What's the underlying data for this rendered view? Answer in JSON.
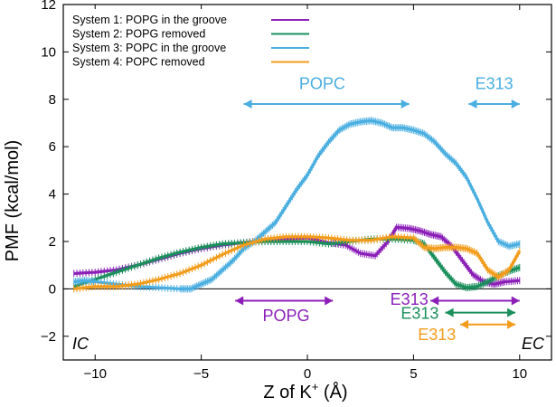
{
  "chart_data": {
    "type": "line",
    "xlabel_main": "Z of K",
    "xlabel_sup": "+",
    "xlabel_unit": " (Å)",
    "ylabel": "PMF (kcal/mol)",
    "xlim": [
      -11.5,
      11.5
    ],
    "ylim": [
      -3,
      12
    ],
    "xticks": [
      -10,
      -5,
      0,
      5,
      10
    ],
    "xtick_labels": [
      "−10",
      "−5",
      "0",
      "5",
      "10"
    ],
    "yticks": [
      -2,
      0,
      2,
      4,
      6,
      8,
      10,
      12
    ],
    "ytick_labels": [
      "−2",
      "0",
      "2",
      "4",
      "6",
      "8",
      "10",
      "12"
    ],
    "legend_position": "top-left",
    "series": [
      {
        "name": "System 1: POPG in the groove",
        "color": "#8b1fb8",
        "x": [
          -11,
          -10,
          -9,
          -8,
          -7,
          -6,
          -5,
          -4,
          -3,
          -2,
          -1,
          0,
          1,
          1.8,
          2.5,
          3.2,
          3.8,
          4.2,
          4.8,
          5.3,
          5.8,
          6.3,
          6.8,
          7.3,
          7.8,
          8.3,
          8.8,
          9.3,
          10
        ],
        "y": [
          0.65,
          0.7,
          0.8,
          1.0,
          1.25,
          1.5,
          1.7,
          1.85,
          1.95,
          2.05,
          2.1,
          2.15,
          1.95,
          1.85,
          1.5,
          1.4,
          2.0,
          2.6,
          2.55,
          2.45,
          2.3,
          2.2,
          1.8,
          1.2,
          0.6,
          0.3,
          0.2,
          0.3,
          0.35
        ]
      },
      {
        "name": "System 2: POPG removed",
        "color": "#1a8f5c",
        "x": [
          -11,
          -10,
          -9,
          -8,
          -7,
          -6,
          -5,
          -4,
          -3,
          -2,
          -1,
          0,
          1,
          2,
          3,
          4,
          5,
          5.5,
          6,
          6.5,
          7,
          7.5,
          8,
          8.5,
          9,
          9.5,
          10
        ],
        "y": [
          0.1,
          0.4,
          0.7,
          1.0,
          1.3,
          1.55,
          1.75,
          1.9,
          1.95,
          2.0,
          2.0,
          2.0,
          1.9,
          2.0,
          2.1,
          2.1,
          2.05,
          1.9,
          1.3,
          0.7,
          0.2,
          0.05,
          0.1,
          0.3,
          0.55,
          0.75,
          0.9
        ]
      },
      {
        "name": "System 3: POPC in the groove",
        "color": "#4aaee0",
        "x": [
          -11,
          -10.5,
          -10,
          -9,
          -8,
          -7,
          -6,
          -5.5,
          -5,
          -4.5,
          -4,
          -3.5,
          -3,
          -2.5,
          -2,
          -1.5,
          -1,
          -0.5,
          0,
          0.5,
          1,
          1.5,
          2,
          2.5,
          3,
          3.5,
          4,
          4.5,
          5,
          5.5,
          6,
          6.5,
          7,
          7.5,
          8,
          8.5,
          9,
          9.5,
          10
        ],
        "y": [
          0.3,
          0.35,
          0.3,
          0.2,
          0.1,
          0.05,
          0.0,
          0.0,
          0.2,
          0.4,
          0.8,
          1.2,
          1.7,
          2.0,
          2.4,
          2.8,
          3.5,
          4.2,
          4.8,
          5.6,
          6.2,
          6.7,
          6.95,
          7.05,
          7.1,
          7.0,
          6.8,
          6.8,
          6.7,
          6.55,
          6.2,
          5.7,
          5.3,
          4.7,
          3.8,
          2.8,
          2.0,
          1.8,
          1.9
        ]
      },
      {
        "name": "System 4: POPC removed",
        "color": "#f39c1c",
        "x": [
          -11,
          -10,
          -9,
          -8,
          -7,
          -6,
          -5,
          -4,
          -3,
          -2,
          -1,
          0,
          1,
          2,
          3,
          4,
          5,
          5.5,
          6,
          6.5,
          7,
          7.5,
          8,
          8.5,
          9,
          9.5,
          10
        ],
        "y": [
          0.0,
          0.1,
          0.1,
          0.2,
          0.4,
          0.65,
          1.0,
          1.45,
          1.85,
          2.1,
          2.2,
          2.2,
          2.15,
          2.05,
          2.05,
          2.2,
          2.15,
          1.75,
          1.7,
          1.75,
          1.75,
          1.7,
          1.5,
          0.8,
          0.5,
          0.8,
          1.6
        ]
      }
    ],
    "annotations": [
      {
        "text": "POPC",
        "color": "#4aaee0",
        "x_from": -3.0,
        "x_to": 4.8,
        "y": 7.8,
        "label_x": 0.7,
        "label_y": 8.7
      },
      {
        "text": "E313",
        "color": "#4aaee0",
        "x_from": 7.6,
        "x_to": 10.0,
        "y": 7.8,
        "label_x": 8.8,
        "label_y": 8.7
      },
      {
        "text": "POPG",
        "color": "#8b1fb8",
        "x_from": -3.4,
        "x_to": 1.2,
        "y": -0.5,
        "label_x": -1.0,
        "label_y": -1.1
      },
      {
        "text": "E313",
        "color": "#8b1fb8",
        "x_from": 5.8,
        "x_to": 10.0,
        "y": -0.5,
        "label_x": 4.8,
        "label_y": -0.4
      },
      {
        "text": "E313",
        "color": "#1a8f5c",
        "x_from": 6.5,
        "x_to": 9.8,
        "y": -1.0,
        "label_x": 5.3,
        "label_y": -1.0
      },
      {
        "text": "E313",
        "color": "#f39c1c",
        "x_from": 7.2,
        "x_to": 9.8,
        "y": -1.5,
        "label_x": 6.1,
        "label_y": -1.9
      }
    ],
    "corner_labels": {
      "left": "IC",
      "right": "EC"
    }
  }
}
